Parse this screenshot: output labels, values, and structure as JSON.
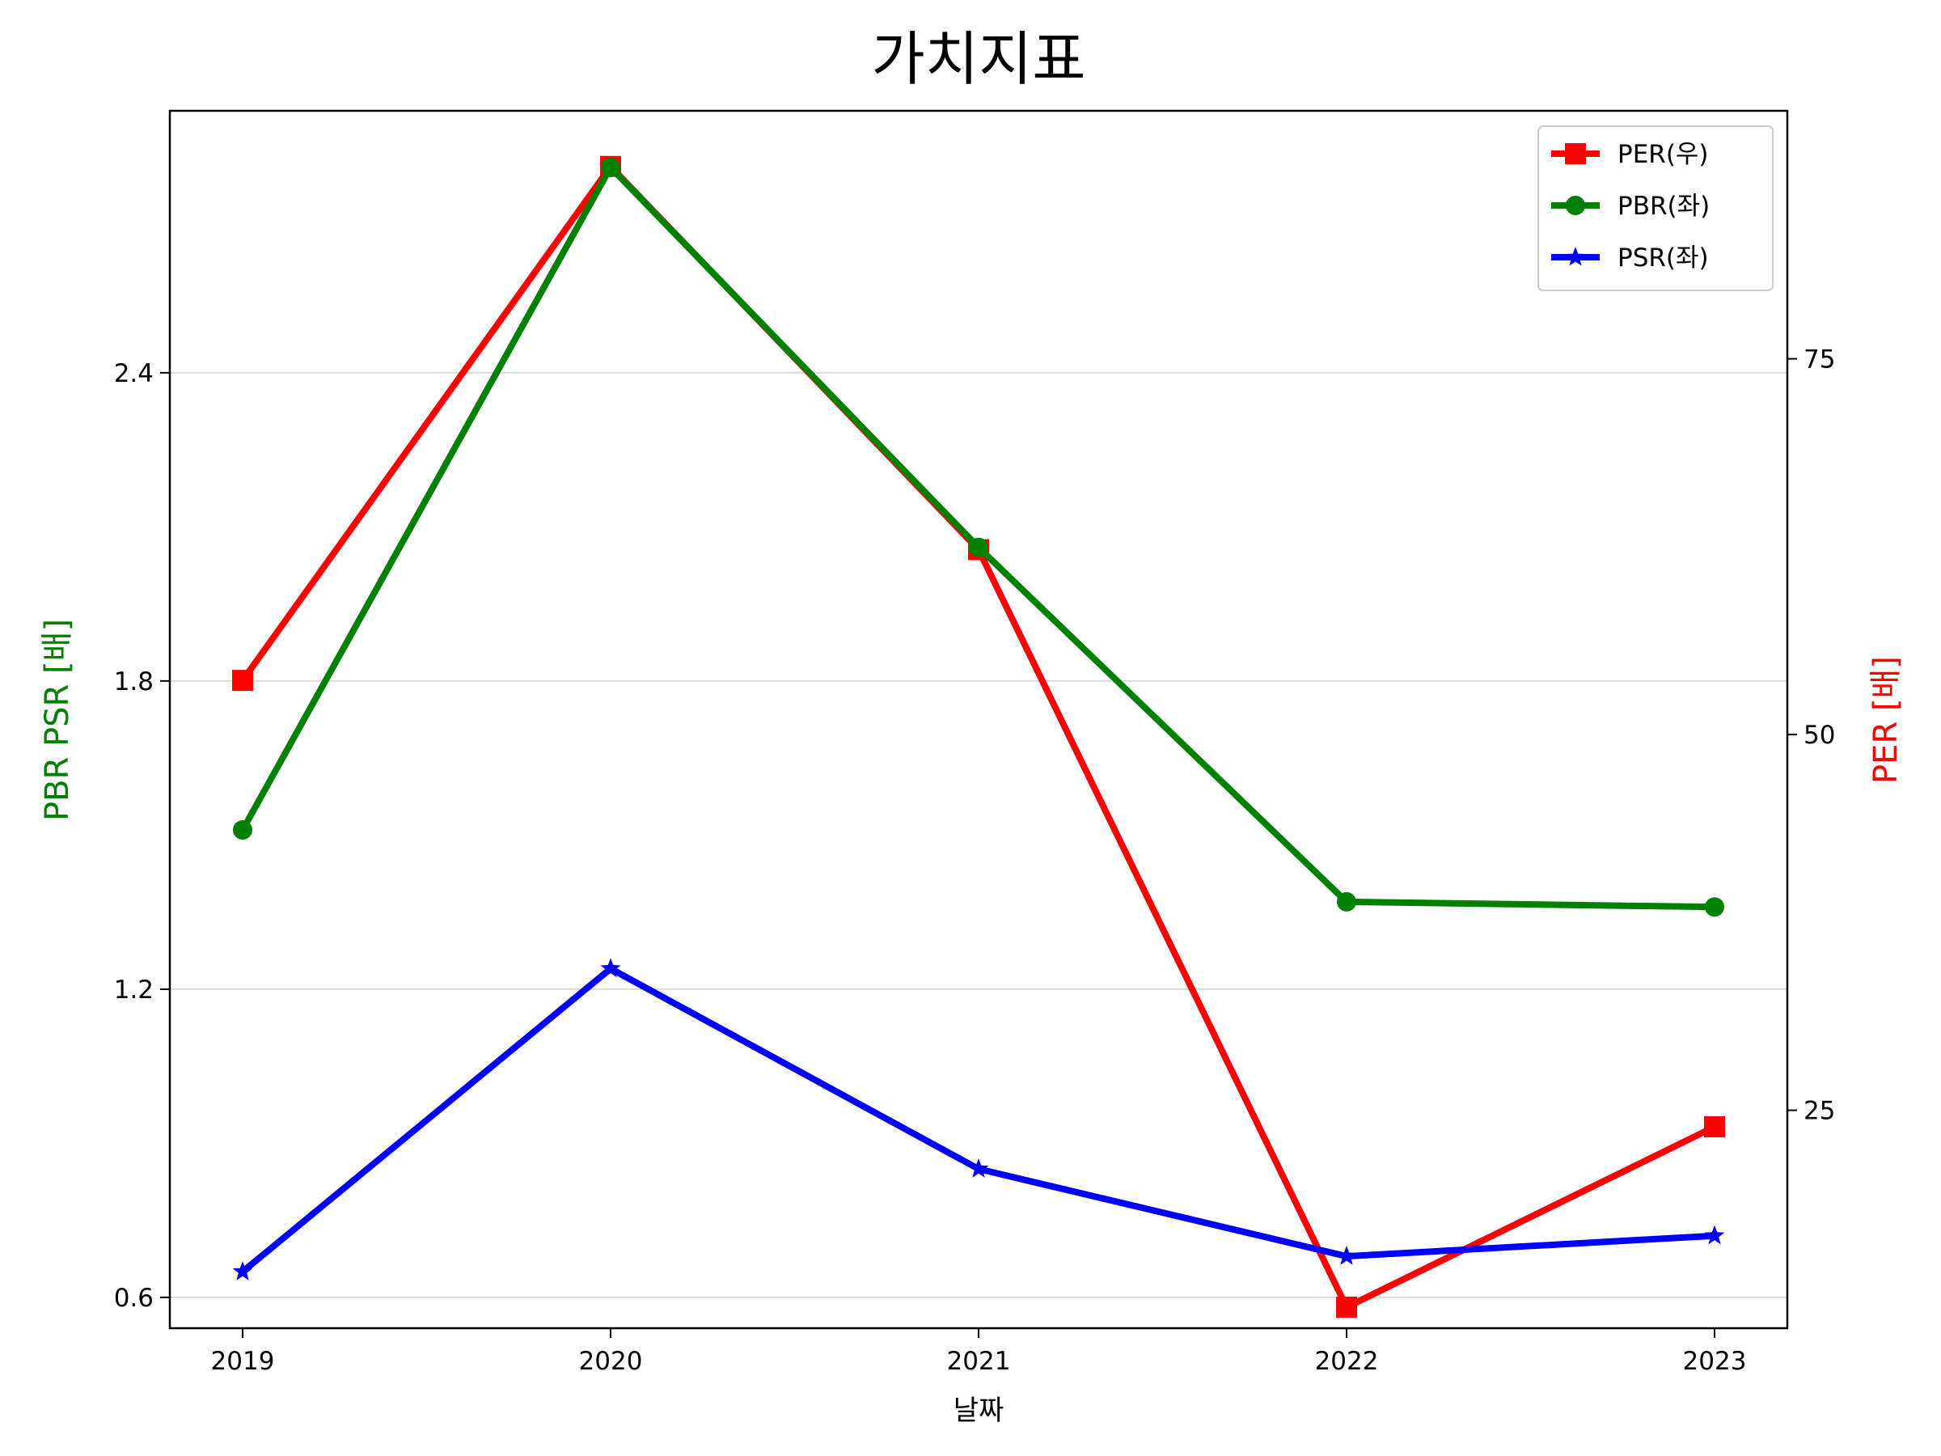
{
  "chart_data": {
    "type": "line",
    "title": "가치지표",
    "xlabel": "날짜",
    "ylabel_left": "PBR PSR [배]",
    "ylabel_right": "PER [배]",
    "categories": [
      "2019",
      "2020",
      "2021",
      "2022",
      "2023"
    ],
    "left_axis": {
      "ylim": [
        0.54,
        2.91
      ],
      "ticks": [
        0.6,
        1.2,
        1.8,
        2.4
      ],
      "tick_labels": [
        "0.6",
        "1.2",
        "1.8",
        "2.4"
      ]
    },
    "right_axis": {
      "ylim": [
        10.5,
        91.5
      ],
      "ticks": [
        25,
        50,
        75
      ],
      "tick_labels": [
        "25",
        "50",
        "75"
      ]
    },
    "grid": "horizontal (left axis)",
    "legend_position": "top-right",
    "series": [
      {
        "name": "PER(우)",
        "axis": "right",
        "color": "#ff0000",
        "marker": "square",
        "values": [
          53.6,
          87.8,
          62.3,
          11.9,
          23.9
        ]
      },
      {
        "name": "PBR(좌)",
        "axis": "left",
        "color": "#008000",
        "marker": "circle",
        "values": [
          1.51,
          2.8,
          2.06,
          1.37,
          1.36
        ]
      },
      {
        "name": "PSR(좌)",
        "axis": "left",
        "color": "#0000ff",
        "marker": "star",
        "values": [
          0.65,
          1.24,
          0.85,
          0.68,
          0.72
        ]
      }
    ]
  }
}
